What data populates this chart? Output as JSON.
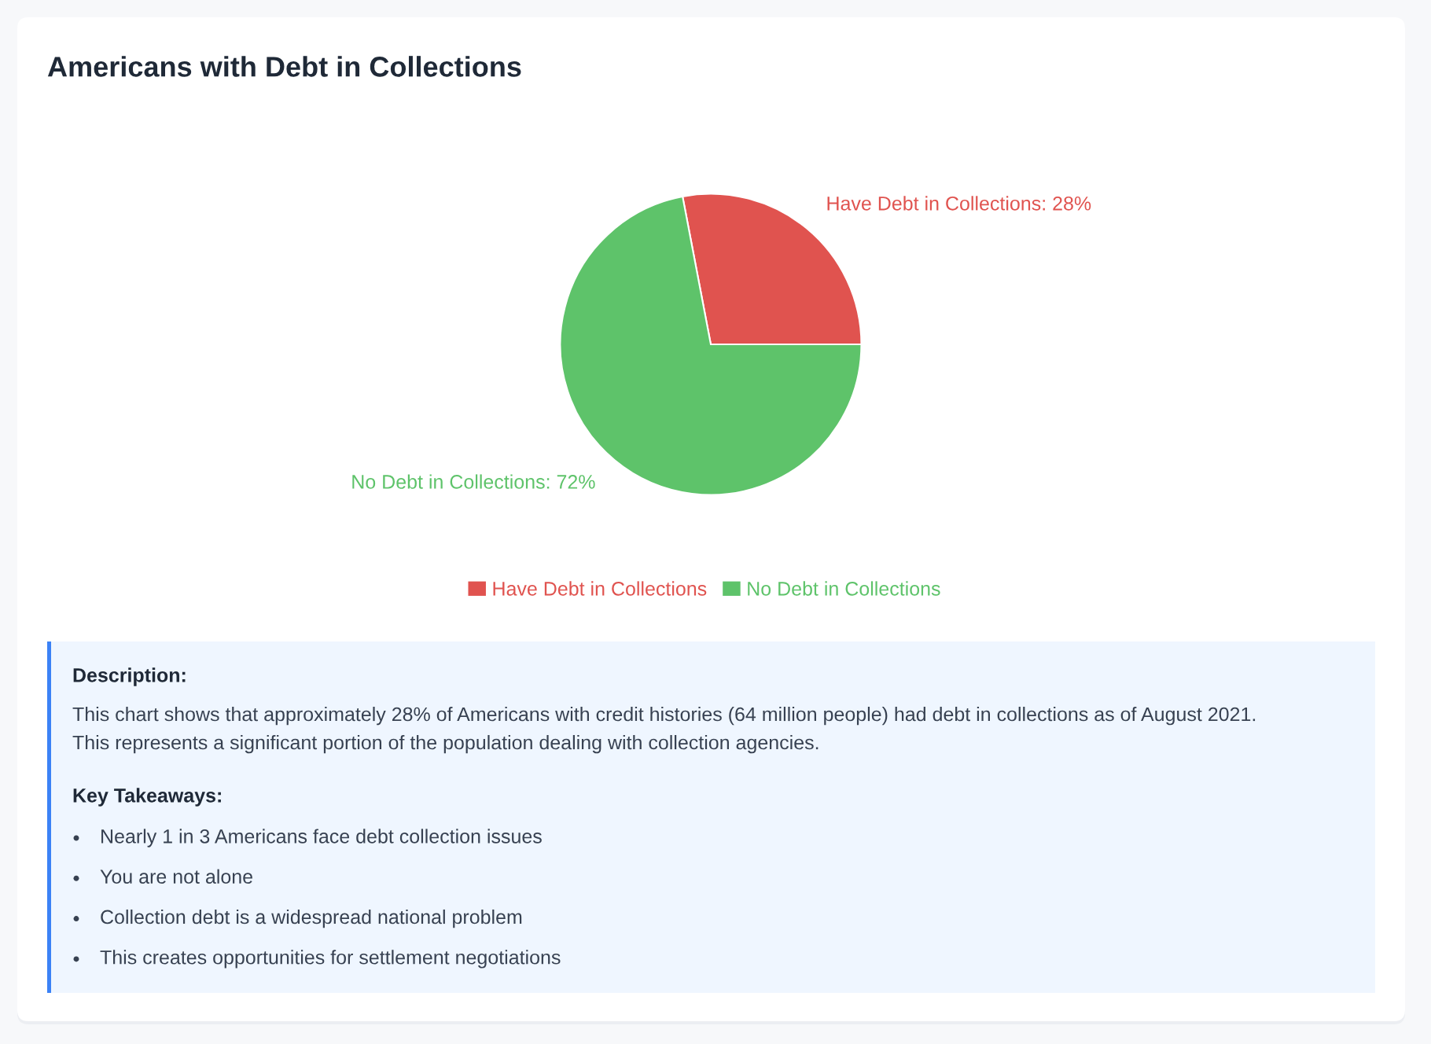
{
  "chart_data": {
    "type": "pie",
    "title": "Americans with Debt in Collections",
    "categories": [
      "Have Debt in Collections",
      "No Debt in Collections"
    ],
    "values": [
      28,
      72
    ],
    "colors": [
      "#e0534f",
      "#5ec36a"
    ],
    "value_labels": [
      "Have Debt in Collections: 28%",
      "No Debt in Collections: 72%"
    ],
    "legend": "bottom",
    "annotations": [
      "Description:",
      "This chart shows that approximately 28% of Americans with credit histories (64 million people) had debt in collections as of August 2021. This represents a significant portion of the population dealing with collection agencies.",
      "Key Takeaways:",
      "Nearly 1 in 3 Americans face debt collection issues",
      "You are not alone",
      "Collection debt is a widespread national problem",
      "This creates opportunities for settlement negotiations"
    ]
  }
}
